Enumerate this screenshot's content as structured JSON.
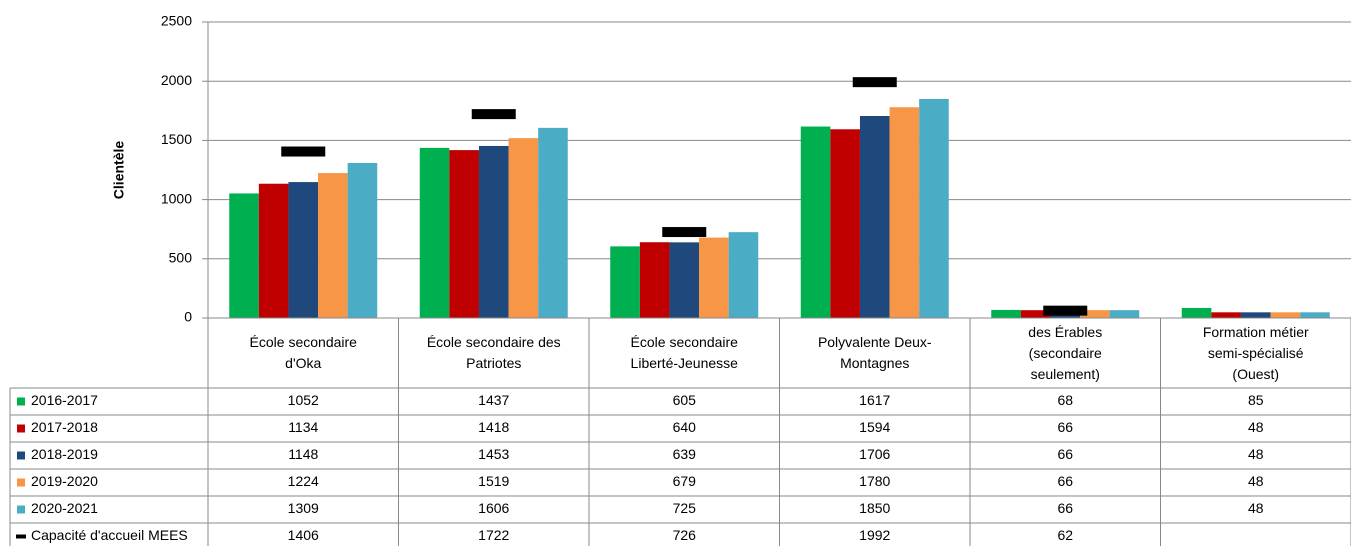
{
  "chart_data": {
    "type": "bar",
    "y_label": "Clientèle",
    "categories": [
      "École secondaire\nd'Oka",
      "École secondaire des\nPatriotes",
      "École secondaire\nLiberté-Jeunesse",
      "Polyvalente Deux-\nMontagnes",
      "des Érables\n(secondaire\nseulement)",
      "Formation métier\nsemi-spécialisé\n(Ouest)"
    ],
    "series": [
      {
        "name": "2016-2017",
        "color": "#00b050",
        "values": [
          1052,
          1437,
          605,
          1617,
          68,
          85
        ]
      },
      {
        "name": "2017-2018",
        "color": "#c00000",
        "values": [
          1134,
          1418,
          640,
          1594,
          66,
          48
        ]
      },
      {
        "name": "2018-2019",
        "color": "#1f497d",
        "values": [
          1148,
          1453,
          639,
          1706,
          66,
          48
        ]
      },
      {
        "name": "2019-2020",
        "color": "#f79646",
        "values": [
          1224,
          1519,
          679,
          1780,
          66,
          48
        ]
      },
      {
        "name": "2020-2021",
        "color": "#4bacc6",
        "values": [
          1309,
          1606,
          725,
          1850,
          66,
          48
        ]
      },
      {
        "name": "Capacité d'accueil MEES",
        "color": "#000000",
        "marker": "dash",
        "values": [
          1406,
          1722,
          726,
          1992,
          62,
          null
        ]
      }
    ],
    "ylim": [
      0,
      2500
    ],
    "yticks": [
      0,
      500,
      1000,
      1500,
      2000,
      2500
    ],
    "grid": true,
    "data_table": true
  }
}
